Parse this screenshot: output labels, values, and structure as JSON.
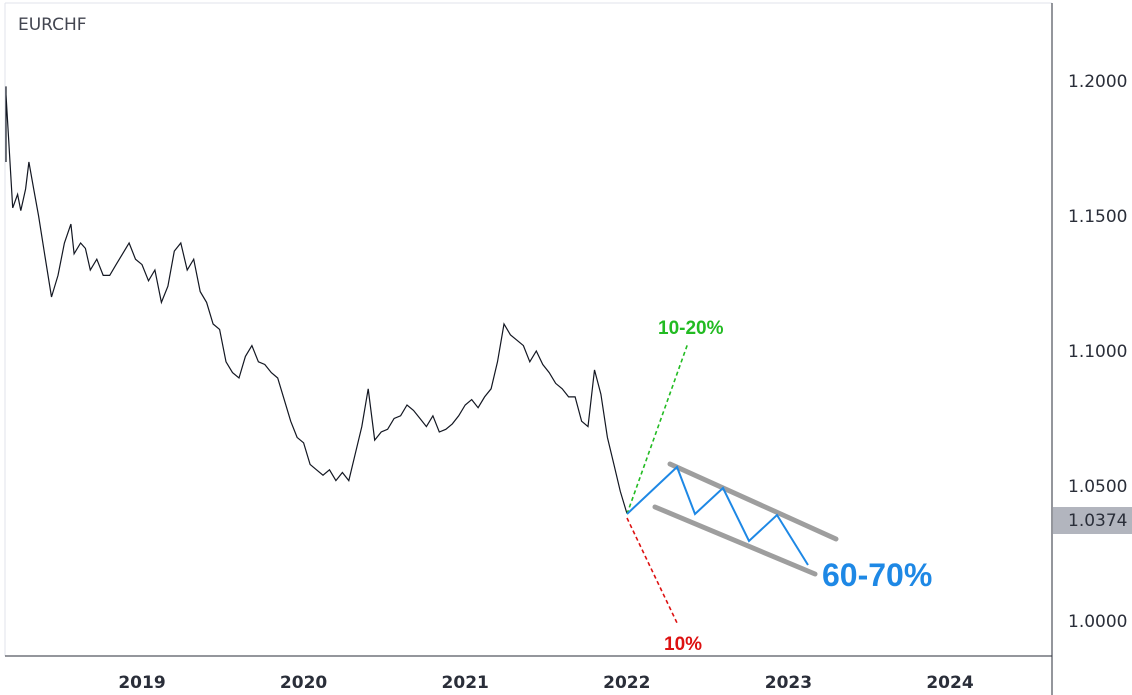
{
  "chart_data": {
    "type": "line",
    "symbol": "EURCHF",
    "title": "",
    "xlabel": "",
    "ylabel": "",
    "x_ticks": [
      "2019",
      "2020",
      "2021",
      "2022",
      "2023",
      "2024"
    ],
    "y_ticks": [
      "1.2000",
      "1.1500",
      "1.1000",
      "1.0500",
      "1.0000"
    ],
    "ylim": [
      0.985,
      1.225
    ],
    "current_price": "1.0374",
    "series": [
      {
        "values_note": "",
        "x": [
          2018.0,
          2018.04,
          2018.08,
          2018.12,
          2018.15,
          2018.2,
          2018.23,
          2018.25,
          2018.28,
          2018.3,
          2018.33,
          2018.36,
          2018.4,
          2018.44,
          2018.48,
          2018.52,
          2018.56,
          2018.58,
          2018.62,
          2018.65,
          2018.68,
          2018.72,
          2018.76,
          2018.8,
          2018.84,
          2018.88,
          2018.92,
          2018.96,
          2019.0,
          2019.04,
          2019.08,
          2019.12,
          2019.16,
          2019.2,
          2019.24,
          2019.28,
          2019.32,
          2019.36,
          2019.4,
          2019.44,
          2019.48,
          2019.52,
          2019.56,
          2019.6,
          2019.64,
          2019.68,
          2019.72,
          2019.76,
          2019.8,
          2019.84,
          2019.88,
          2019.92,
          2019.96,
          2020.0,
          2020.04,
          2020.08,
          2020.12,
          2020.16,
          2020.2,
          2020.24,
          2020.28,
          2020.32,
          2020.36,
          2020.4,
          2020.44,
          2020.48,
          2020.52,
          2020.56,
          2020.6,
          2020.64,
          2020.68,
          2020.72,
          2020.76,
          2020.8,
          2020.84,
          2020.88,
          2020.92,
          2020.96,
          2021.0,
          2021.04,
          2021.08,
          2021.12,
          2021.16,
          2021.2,
          2021.24,
          2021.28,
          2021.32,
          2021.36,
          2021.4,
          2021.44,
          2021.48,
          2021.52,
          2021.56,
          2021.6,
          2021.64,
          2021.68,
          2021.72,
          2021.76,
          2021.8,
          2021.84,
          2021.88,
          2021.92,
          2021.96,
          2022.0
        ],
        "y": [
          1.17,
          1.172,
          1.18,
          1.198,
          1.195,
          1.153,
          1.158,
          1.152,
          1.16,
          1.17,
          1.16,
          1.15,
          1.135,
          1.12,
          1.128,
          1.14,
          1.147,
          1.136,
          1.14,
          1.138,
          1.13,
          1.134,
          1.128,
          1.128,
          1.132,
          1.136,
          1.14,
          1.134,
          1.132,
          1.126,
          1.13,
          1.118,
          1.124,
          1.137,
          1.14,
          1.13,
          1.134,
          1.122,
          1.118,
          1.11,
          1.108,
          1.096,
          1.092,
          1.09,
          1.098,
          1.102,
          1.096,
          1.095,
          1.092,
          1.09,
          1.082,
          1.074,
          1.068,
          1.066,
          1.058,
          1.056,
          1.054,
          1.056,
          1.052,
          1.055,
          1.052,
          1.062,
          1.072,
          1.086,
          1.067,
          1.07,
          1.071,
          1.075,
          1.076,
          1.08,
          1.078,
          1.075,
          1.072,
          1.076,
          1.07,
          1.071,
          1.073,
          1.076,
          1.08,
          1.082,
          1.079,
          1.083,
          1.086,
          1.096,
          1.11,
          1.106,
          1.104,
          1.102,
          1.096,
          1.1,
          1.095,
          1.092,
          1.088,
          1.086,
          1.083,
          1.083,
          1.074,
          1.072,
          1.093,
          1.084,
          1.068,
          1.058,
          1.048,
          1.04
        ]
      }
    ],
    "annotations": [
      {
        "label": "10-20%",
        "color": "#22bb22"
      },
      {
        "label": "10%",
        "color": "#dd1111"
      },
      {
        "label": "60-70%",
        "color": "#1e88e5"
      }
    ]
  }
}
